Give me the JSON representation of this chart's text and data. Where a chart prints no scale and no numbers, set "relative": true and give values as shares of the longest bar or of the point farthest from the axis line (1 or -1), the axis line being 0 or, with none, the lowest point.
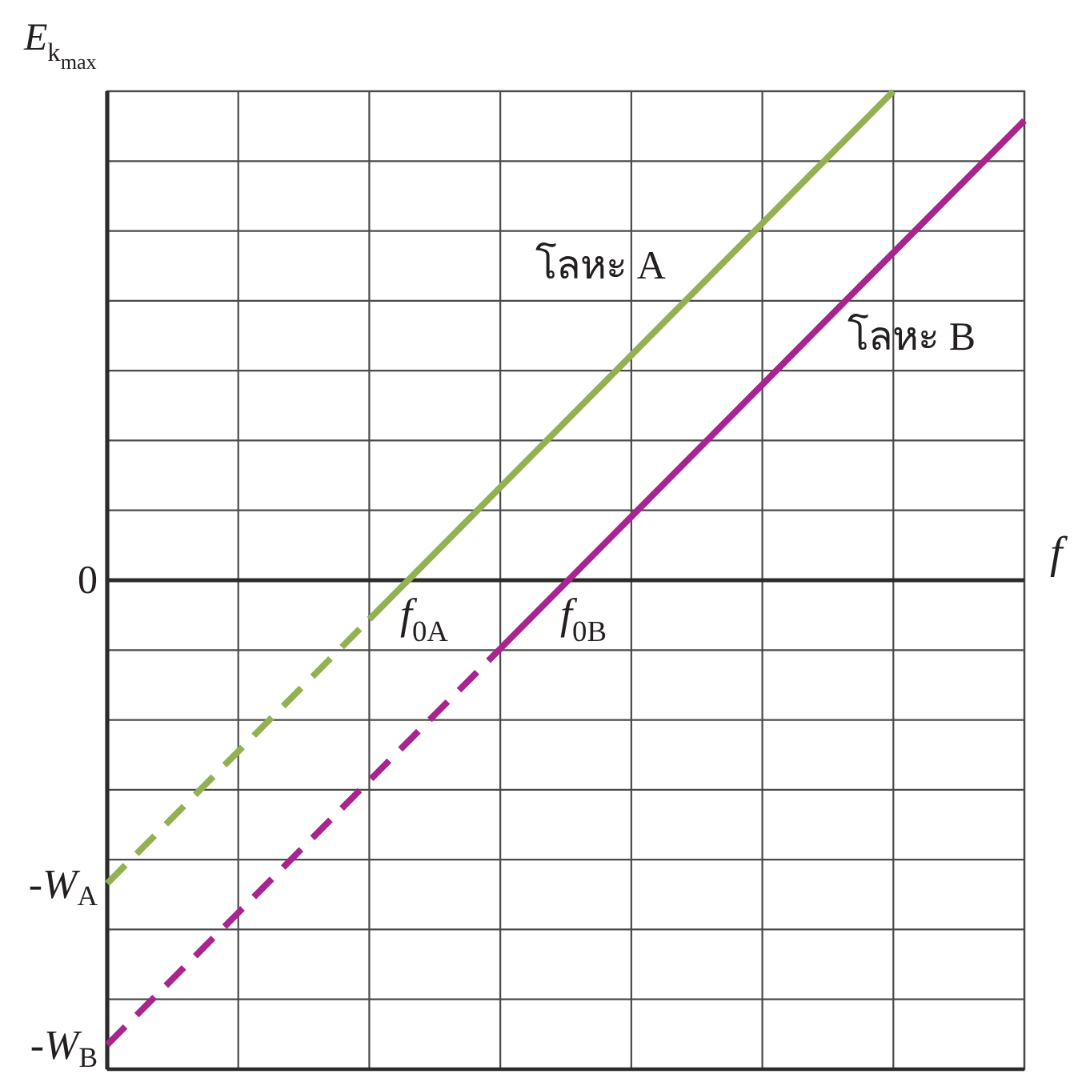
{
  "chart_data": {
    "type": "line",
    "relative": true,
    "xlabel": "f",
    "ylabel": "E$_{k}$$_{max}$",
    "categories": [
      null,
      null,
      null,
      null,
      null,
      null,
      null,
      null
    ],
    "grid": true,
    "series": [
      {
        "color": "#93b152",
        "line_style": "dashed",
        "values": [
          -0.62,
          -0.35,
          -0.08,
          null,
          null,
          null,
          null,
          null
        ]
      },
      {
        "name": "โลหะ A",
        "color": "#93b152",
        "line_style": "solid",
        "values": [
          null,
          null,
          -0.08,
          0.19,
          0.46,
          0.73,
          1,
          null
        ]
      },
      {
        "color": "#a8248f",
        "line_style": "dashed",
        "values": [
          -0.95,
          -0.68,
          -0.41,
          -0.14,
          null,
          null,
          null,
          null
        ]
      },
      {
        "name": "โลหะ B",
        "color": "#a8248f",
        "line_style": "solid",
        "values": [
          null,
          null,
          null,
          -0.14,
          0.13,
          0.4,
          0.67,
          0.94
        ]
      }
    ],
    "annotations": [
      "0",
      "f$_{0A}$",
      "f$_{0B}$",
      "-W$_{A}$",
      "-W$_{B}$"
    ]
  }
}
